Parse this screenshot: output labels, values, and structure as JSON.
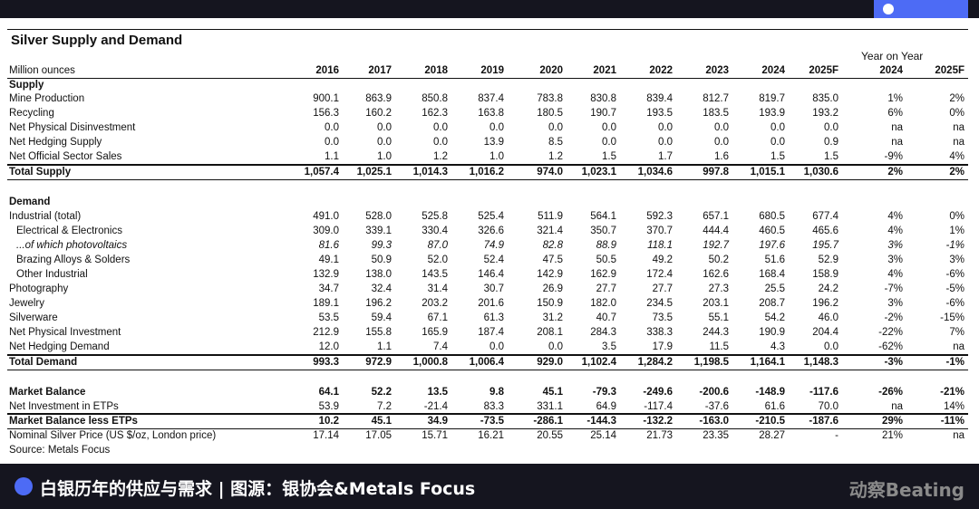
{
  "header": {
    "title": "Silver Supply and Demand"
  },
  "table": {
    "group_header": "Year on Year",
    "columns": [
      "Million ounces",
      "2016",
      "2017",
      "2018",
      "2019",
      "2020",
      "2021",
      "2022",
      "2023",
      "2024",
      "2025F",
      "2024",
      "2025F"
    ],
    "rows": [
      [
        "Supply"
      ],
      [
        "Mine Production",
        "900.1",
        "863.9",
        "850.8",
        "837.4",
        "783.8",
        "830.8",
        "839.4",
        "812.7",
        "819.7",
        "835.0",
        "1%",
        "2%"
      ],
      [
        "Recycling",
        "156.3",
        "160.2",
        "162.3",
        "163.8",
        "180.5",
        "190.7",
        "193.5",
        "183.5",
        "193.9",
        "193.2",
        "6%",
        "0%"
      ],
      [
        "Net Physical Disinvestment",
        "0.0",
        "0.0",
        "0.0",
        "0.0",
        "0.0",
        "0.0",
        "0.0",
        "0.0",
        "0.0",
        "0.0",
        "na",
        "na"
      ],
      [
        "Net Hedging Supply",
        "0.0",
        "0.0",
        "0.0",
        "13.9",
        "8.5",
        "0.0",
        "0.0",
        "0.0",
        "0.0",
        "0.9",
        "na",
        "na"
      ],
      [
        "Net Official Sector Sales",
        "1.1",
        "1.0",
        "1.2",
        "1.0",
        "1.2",
        "1.5",
        "1.7",
        "1.6",
        "1.5",
        "1.5",
        "-9%",
        "4%"
      ],
      [
        "Total Supply",
        "1,057.4",
        "1,025.1",
        "1,014.3",
        "1,016.2",
        "974.0",
        "1,023.1",
        "1,034.6",
        "997.8",
        "1,015.1",
        "1,030.6",
        "2%",
        "2%"
      ],
      [
        "Demand"
      ],
      [
        "Industrial (total)",
        "491.0",
        "528.0",
        "525.8",
        "525.4",
        "511.9",
        "564.1",
        "592.3",
        "657.1",
        "680.5",
        "677.4",
        "4%",
        "0%"
      ],
      [
        "Electrical & Electronics",
        "309.0",
        "339.1",
        "330.4",
        "326.6",
        "321.4",
        "350.7",
        "370.7",
        "444.4",
        "460.5",
        "465.6",
        "4%",
        "1%"
      ],
      [
        "...of which photovoltaics",
        "81.6",
        "99.3",
        "87.0",
        "74.9",
        "82.8",
        "88.9",
        "118.1",
        "192.7",
        "197.6",
        "195.7",
        "3%",
        "-1%"
      ],
      [
        "Brazing Alloys & Solders",
        "49.1",
        "50.9",
        "52.0",
        "52.4",
        "47.5",
        "50.5",
        "49.2",
        "50.2",
        "51.6",
        "52.9",
        "3%",
        "3%"
      ],
      [
        "Other Industrial",
        "132.9",
        "138.0",
        "143.5",
        "146.4",
        "142.9",
        "162.9",
        "172.4",
        "162.6",
        "168.4",
        "158.9",
        "4%",
        "-6%"
      ],
      [
        "Photography",
        "34.7",
        "32.4",
        "31.4",
        "30.7",
        "26.9",
        "27.7",
        "27.7",
        "27.3",
        "25.5",
        "24.2",
        "-7%",
        "-5%"
      ],
      [
        "Jewelry",
        "189.1",
        "196.2",
        "203.2",
        "201.6",
        "150.9",
        "182.0",
        "234.5",
        "203.1",
        "208.7",
        "196.2",
        "3%",
        "-6%"
      ],
      [
        "Silverware",
        "53.5",
        "59.4",
        "67.1",
        "61.3",
        "31.2",
        "40.7",
        "73.5",
        "55.1",
        "54.2",
        "46.0",
        "-2%",
        "-15%"
      ],
      [
        "Net Physical Investment",
        "212.9",
        "155.8",
        "165.9",
        "187.4",
        "208.1",
        "284.3",
        "338.3",
        "244.3",
        "190.9",
        "204.4",
        "-22%",
        "7%"
      ],
      [
        "Net Hedging Demand",
        "12.0",
        "1.1",
        "7.4",
        "0.0",
        "0.0",
        "3.5",
        "17.9",
        "11.5",
        "4.3",
        "0.0",
        "-62%",
        "na"
      ],
      [
        "Total Demand",
        "993.3",
        "972.9",
        "1,000.8",
        "1,006.4",
        "929.0",
        "1,102.4",
        "1,284.2",
        "1,198.5",
        "1,164.1",
        "1,148.3",
        "-3%",
        "-1%"
      ],
      [
        "Market Balance",
        "64.1",
        "52.2",
        "13.5",
        "9.8",
        "45.1",
        "-79.3",
        "-249.6",
        "-200.6",
        "-148.9",
        "-117.6",
        "-26%",
        "-21%"
      ],
      [
        "Net Investment in ETPs",
        "53.9",
        "7.2",
        "-21.4",
        "83.3",
        "331.1",
        "64.9",
        "-117.4",
        "-37.6",
        "61.6",
        "70.0",
        "na",
        "14%"
      ],
      [
        "Market Balance less ETPs",
        "10.2",
        "45.1",
        "34.9",
        "-73.5",
        "-286.1",
        "-144.3",
        "-132.2",
        "-163.0",
        "-210.5",
        "-187.6",
        "29%",
        "-11%"
      ],
      [
        "Nominal Silver Price (US $/oz, London price)",
        "17.14",
        "17.05",
        "15.71",
        "16.21",
        "20.55",
        "25.14",
        "21.73",
        "23.35",
        "28.27",
        "-",
        "21%",
        "na"
      ]
    ],
    "source": "Source: Metals Focus"
  },
  "caption": "白银历年的供应与需求 | 图源：银协会&Metals Focus",
  "logo": "动察Beating"
}
